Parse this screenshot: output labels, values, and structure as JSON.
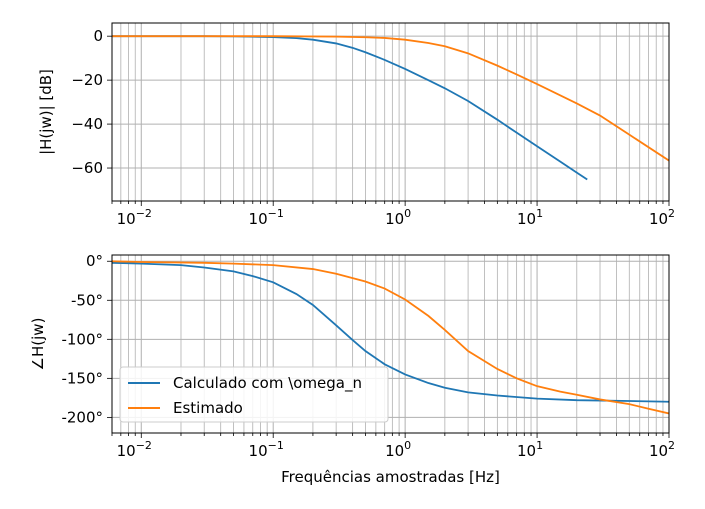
{
  "chart_data": [
    {
      "type": "line",
      "xscale": "log",
      "xlim": [
        0.006,
        100
      ],
      "ylim": [
        -75,
        6
      ],
      "ylabel": "|H(jw)| [dB]",
      "xlabel": "",
      "grid": true,
      "x_tick_labels": [
        "10",
        "10",
        "10",
        "10",
        "10"
      ],
      "x_tick_exponents": [
        "−2",
        "−1",
        "0",
        "1",
        "2"
      ],
      "x_ticks": [
        0.01,
        0.1,
        1,
        10,
        100
      ],
      "y_ticks": [
        0,
        -20,
        -40,
        -60
      ],
      "y_tick_labels": [
        "0",
        "−20",
        "−40",
        "−60"
      ],
      "series": [
        {
          "name": "Calculado com \\omega_n",
          "color": "#1f77b4",
          "x": [
            0.006,
            0.01,
            0.03,
            0.05,
            0.08,
            0.1,
            0.15,
            0.2,
            0.3,
            0.4,
            0.5,
            0.7,
            1,
            1.5,
            2,
            3,
            5,
            7,
            10,
            15,
            20,
            24
          ],
          "y": [
            0,
            0,
            0,
            -0.1,
            -0.3,
            -0.4,
            -0.9,
            -1.6,
            -3.3,
            -5.3,
            -7.3,
            -10.8,
            -14.9,
            -20.0,
            -23.7,
            -29.5,
            -38.0,
            -43.9,
            -50.1,
            -57.1,
            -62.1,
            -65.2
          ]
        },
        {
          "name": "Estimado",
          "color": "#ff7f0e",
          "x": [
            0.006,
            0.01,
            0.1,
            0.3,
            0.5,
            0.7,
            1,
            1.5,
            2,
            3,
            5,
            7,
            10,
            20,
            30,
            50,
            100
          ],
          "y": [
            0,
            0,
            0,
            -0.2,
            -0.5,
            -0.8,
            -1.6,
            -3.1,
            -4.6,
            -7.8,
            -13.4,
            -17.4,
            -21.8,
            -30.6,
            -36.1,
            -44.8,
            -56.6
          ]
        }
      ]
    },
    {
      "type": "line",
      "xscale": "log",
      "xlim": [
        0.006,
        100
      ],
      "ylim": [
        -220,
        8
      ],
      "ylabel": "∠H(jw)",
      "xlabel": "Frequências amostradas [Hz]",
      "grid": true,
      "legend_position": "lower-left",
      "x_tick_labels": [
        "10",
        "10",
        "10",
        "10",
        "10"
      ],
      "x_tick_exponents": [
        "−2",
        "−1",
        "0",
        "1",
        "2"
      ],
      "x_ticks": [
        0.01,
        0.1,
        1,
        10,
        100
      ],
      "y_ticks": [
        0,
        -50,
        -100,
        -150,
        -200
      ],
      "y_tick_labels": [
        "0°",
        "-50°",
        "-100°",
        "-150°",
        "-200°"
      ],
      "series": [
        {
          "name": "Calculado com \\omega_n",
          "color": "#1f77b4",
          "x": [
            0.006,
            0.01,
            0.02,
            0.03,
            0.05,
            0.07,
            0.1,
            0.15,
            0.2,
            0.3,
            0.4,
            0.5,
            0.7,
            1,
            1.5,
            2,
            3,
            5,
            10,
            20,
            50,
            100
          ],
          "y": [
            -2,
            -3,
            -5,
            -8,
            -13,
            -19,
            -27,
            -42,
            -56,
            -82,
            -101,
            -115,
            -132,
            -145,
            -156,
            -162,
            -168,
            -172,
            -176,
            -178,
            -179,
            -180
          ]
        },
        {
          "name": "Estimado",
          "color": "#ff7f0e",
          "x": [
            0.006,
            0.01,
            0.03,
            0.05,
            0.1,
            0.2,
            0.3,
            0.5,
            0.7,
            1,
            1.5,
            2,
            3,
            5,
            7,
            10,
            15,
            20,
            30,
            50,
            70,
            100
          ],
          "y": [
            0,
            -1,
            -2,
            -3,
            -5,
            -10,
            -16,
            -26,
            -35,
            -49,
            -70,
            -88,
            -115,
            -138,
            -150,
            -160,
            -167,
            -171,
            -177,
            -183,
            -189,
            -195
          ]
        }
      ]
    }
  ],
  "legend": {
    "entries": [
      "Calculado com \\omega_n",
      "Estimado"
    ]
  }
}
